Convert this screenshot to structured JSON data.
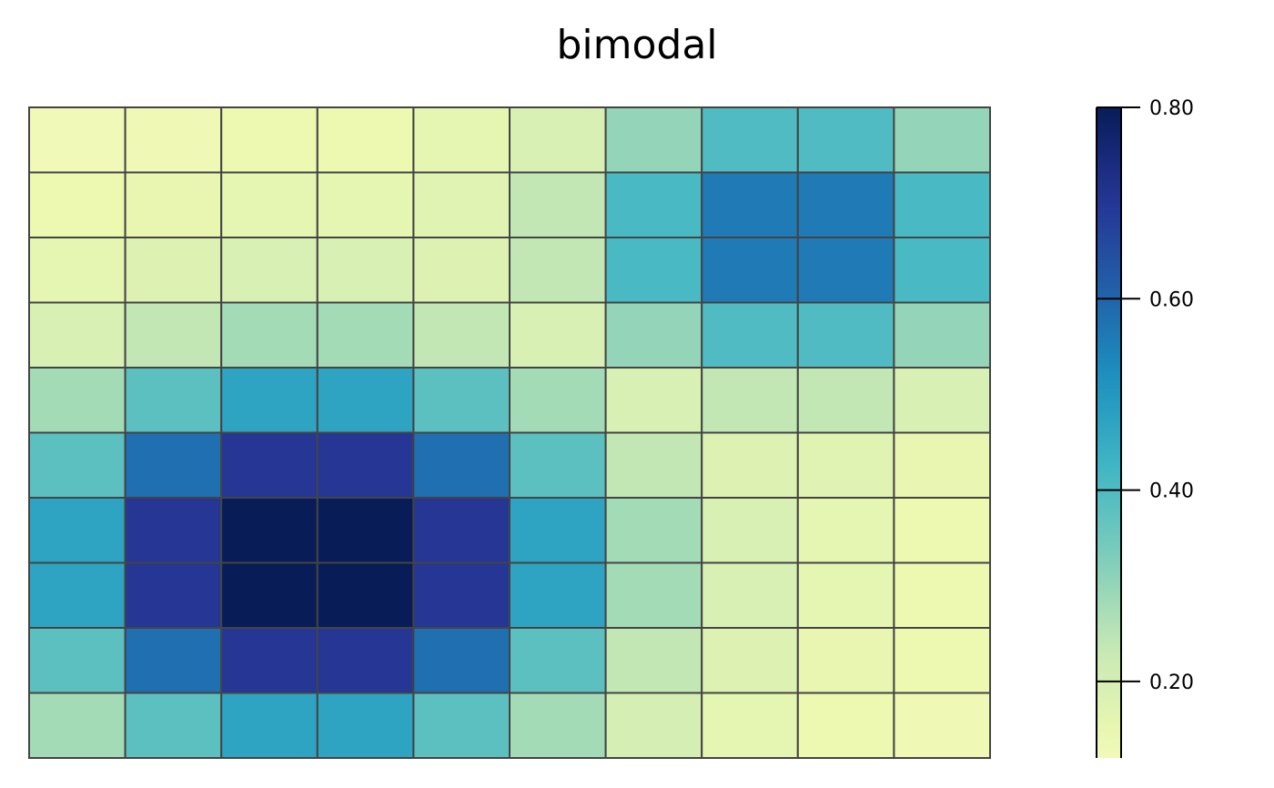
{
  "chart_data": {
    "type": "heatmap",
    "title": "bimodal",
    "nrows": 10,
    "ncols": 10,
    "values": [
      [
        0.12,
        0.13,
        0.14,
        0.14,
        0.16,
        0.19,
        0.3,
        0.4,
        0.4,
        0.3
      ],
      [
        0.14,
        0.15,
        0.16,
        0.16,
        0.17,
        0.24,
        0.41,
        0.56,
        0.56,
        0.41
      ],
      [
        0.16,
        0.18,
        0.19,
        0.19,
        0.18,
        0.24,
        0.41,
        0.56,
        0.56,
        0.41
      ],
      [
        0.19,
        0.24,
        0.28,
        0.28,
        0.24,
        0.19,
        0.3,
        0.4,
        0.4,
        0.3
      ],
      [
        0.28,
        0.38,
        0.47,
        0.47,
        0.38,
        0.28,
        0.19,
        0.24,
        0.24,
        0.19
      ],
      [
        0.38,
        0.58,
        0.7,
        0.7,
        0.58,
        0.38,
        0.24,
        0.18,
        0.17,
        0.15
      ],
      [
        0.47,
        0.7,
        0.82,
        0.82,
        0.7,
        0.47,
        0.28,
        0.19,
        0.16,
        0.14
      ],
      [
        0.47,
        0.7,
        0.82,
        0.82,
        0.7,
        0.47,
        0.28,
        0.19,
        0.16,
        0.14
      ],
      [
        0.38,
        0.58,
        0.7,
        0.7,
        0.58,
        0.38,
        0.24,
        0.18,
        0.15,
        0.14
      ],
      [
        0.28,
        0.38,
        0.47,
        0.47,
        0.38,
        0.28,
        0.2,
        0.16,
        0.14,
        0.13
      ]
    ],
    "colorbar": {
      "min": 0.12,
      "max": 0.8,
      "ticks": [
        0.2,
        0.4,
        0.6,
        0.8
      ],
      "tick_labels": [
        "0.20",
        "0.40",
        "0.60",
        "0.80"
      ]
    },
    "colormap": "YlGnBu",
    "grid_color": "#444444"
  }
}
